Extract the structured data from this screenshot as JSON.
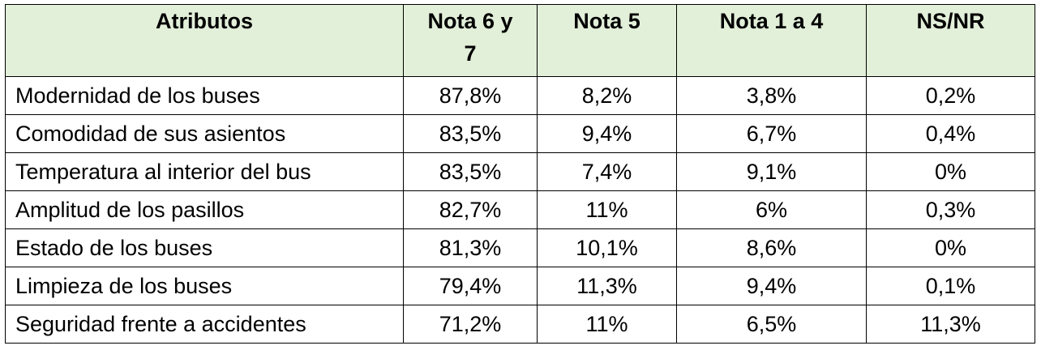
{
  "table": {
    "header": [
      "Atributos",
      "Nota 6 y 7",
      "Nota 5",
      "Nota 1 a 4",
      "NS/NR"
    ],
    "rows": [
      [
        "Modernidad de los buses",
        "87,8%",
        "8,2%",
        "3,8%",
        "0,2%"
      ],
      [
        "Comodidad de sus asientos",
        "83,5%",
        "9,4%",
        "6,7%",
        "0,4%"
      ],
      [
        "Temperatura al interior del bus",
        "83,5%",
        "7,4%",
        "9,1%",
        "0%"
      ],
      [
        "Amplitud de los pasillos",
        "82,7%",
        "11%",
        "6%",
        "0,3%"
      ],
      [
        "Estado de los buses",
        "81,3%",
        "10,1%",
        "8,6%",
        "0%"
      ],
      [
        "Limpieza de los buses",
        "79,4%",
        "11,3%",
        "9,4%",
        "0,1%"
      ],
      [
        "Seguridad frente a accidentes",
        "71,2%",
        "11%",
        "6,5%",
        "11,3%"
      ]
    ]
  }
}
